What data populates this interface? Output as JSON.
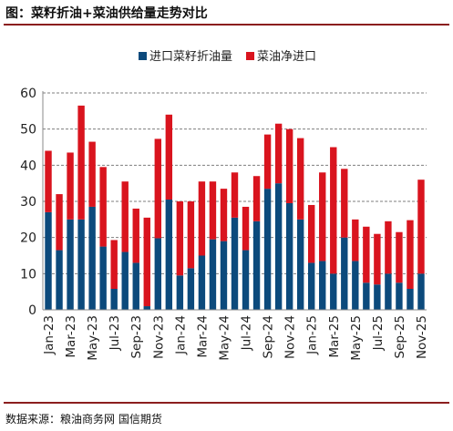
{
  "header": {
    "title": "图：菜籽折油+菜油供给量走势对比"
  },
  "footer": {
    "source": "数据来源：粮油商务网  国信期货"
  },
  "colors": {
    "imports": "#0c4a7c",
    "net_imports": "#d9141e",
    "accent_rule": "#8b1e1e"
  },
  "chart_data": {
    "type": "bar",
    "stacked": true,
    "title": "",
    "xlabel": "",
    "ylabel": "",
    "ylim": [
      0,
      60
    ],
    "yticks": [
      0,
      10,
      20,
      30,
      40,
      50,
      60
    ],
    "grid": true,
    "legend_position": "top",
    "categories": [
      "Jan-23",
      "Feb-23",
      "Mar-23",
      "Apr-23",
      "May-23",
      "Jun-23",
      "Jul-23",
      "Aug-23",
      "Sep-23",
      "Oct-23",
      "Nov-23",
      "Dec-23",
      "Jan-24",
      "Feb-24",
      "Mar-24",
      "Apr-24",
      "May-24",
      "Jun-24",
      "Jul-24",
      "Aug-24",
      "Sep-24",
      "Oct-24",
      "Nov-24",
      "Dec-24",
      "Jan-25",
      "Feb-25",
      "Mar-25",
      "Apr-25",
      "May-25",
      "Jun-25",
      "Jul-25",
      "Aug-25",
      "Sep-25",
      "Oct-25",
      "Nov-25"
    ],
    "x_tick_labels": [
      "Jan-23",
      "",
      "Mar-23",
      "",
      "May-23",
      "",
      "Jul-23",
      "",
      "Sep-23",
      "",
      "Nov-23",
      "",
      "Jan-24",
      "",
      "Mar-24",
      "",
      "May-24",
      "",
      "Jul-24",
      "",
      "Sep-24",
      "",
      "Nov-24",
      "",
      "Jan-25",
      "",
      "Mar-25",
      "",
      "May-25",
      "",
      "Jul-25",
      "",
      "Sep-25",
      "",
      "Nov-25"
    ],
    "series": [
      {
        "name": "进口菜籽折油量",
        "values": [
          27,
          16.5,
          25,
          25,
          28.5,
          17.5,
          5.8,
          16,
          13,
          1,
          19.8,
          30.5,
          9.5,
          11.5,
          15,
          19.5,
          19,
          25.5,
          16.5,
          24.5,
          33.5,
          35,
          29.5,
          25,
          13,
          13.5,
          10,
          20,
          13.5,
          7.5,
          7,
          10,
          7.5,
          5.8,
          10
        ]
      },
      {
        "name": "菜油净进口",
        "values": [
          17,
          15.5,
          18.5,
          31.5,
          18,
          22,
          13.5,
          19.5,
          15,
          24.5,
          27.5,
          23.5,
          20.5,
          18.5,
          20.5,
          16,
          14.5,
          12.5,
          12,
          12.5,
          15,
          16.5,
          20.5,
          22.5,
          16,
          24.5,
          35,
          19,
          11.5,
          15.5,
          14,
          14.5,
          14,
          19,
          26
        ]
      }
    ]
  }
}
